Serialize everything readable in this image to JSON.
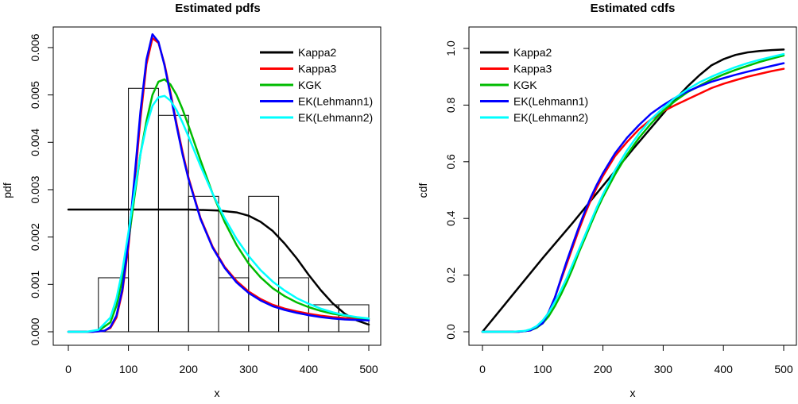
{
  "colors": {
    "Kappa2": "#000000",
    "Kappa3": "#ff0000",
    "KGK": "#00bb00",
    "EK(Lehmann1)": "#0000ff",
    "EK(Lehmann2)": "#00ffff"
  },
  "chart_data": [
    {
      "type": "line",
      "title": "Estimated pdfs",
      "xlabel": "x",
      "ylabel": "pdf",
      "xlim": [
        0,
        500
      ],
      "ylim": [
        0,
        0.0062
      ],
      "xticks": [
        0,
        100,
        200,
        300,
        400,
        500
      ],
      "yticks": [
        0.0,
        0.001,
        0.002,
        0.003,
        0.004,
        0.005,
        0.006
      ],
      "ytick_labels": [
        "0.000",
        "0.001",
        "0.002",
        "0.003",
        "0.004",
        "0.005",
        "0.006"
      ],
      "legend_position": "top-right",
      "histogram": {
        "bin_edges": [
          0,
          50,
          100,
          150,
          200,
          250,
          300,
          350,
          400,
          450,
          500
        ],
        "densities": [
          0,
          0.00114,
          0.00514,
          0.00457,
          0.00286,
          0.00114,
          0.00286,
          0.00114,
          0.00057,
          0.00057
        ]
      },
      "series": [
        {
          "name": "Kappa2",
          "x": [
            0,
            50,
            100,
            150,
            200,
            250,
            280,
            300,
            320,
            340,
            360,
            380,
            400,
            420,
            440,
            460,
            480,
            500
          ],
          "y": [
            0.00258,
            0.00258,
            0.00258,
            0.00258,
            0.00258,
            0.00256,
            0.00252,
            0.00245,
            0.00232,
            0.00213,
            0.00186,
            0.00155,
            0.0012,
            0.00088,
            0.0006,
            0.00038,
            0.00024,
            0.00015
          ]
        },
        {
          "name": "Kappa3",
          "x": [
            0,
            40,
            60,
            70,
            80,
            90,
            100,
            110,
            120,
            130,
            140,
            150,
            160,
            170,
            180,
            190,
            200,
            220,
            240,
            260,
            280,
            300,
            320,
            340,
            360,
            380,
            400,
            420,
            440,
            460,
            480,
            500
          ],
          "y": [
            0,
            0,
            2e-05,
            8e-05,
            0.0003,
            0.00085,
            0.0018,
            0.0031,
            0.0045,
            0.00565,
            0.0062,
            0.0061,
            0.00565,
            0.00505,
            0.0044,
            0.0038,
            0.00325,
            0.0024,
            0.0018,
            0.00137,
            0.00107,
            0.00085,
            0.00069,
            0.00057,
            0.00049,
            0.00043,
            0.00038,
            0.00034,
            0.00031,
            0.00029,
            0.00028,
            0.00027
          ]
        },
        {
          "name": "KGK",
          "x": [
            0,
            30,
            50,
            70,
            80,
            90,
            100,
            110,
            120,
            130,
            140,
            150,
            160,
            170,
            180,
            190,
            200,
            220,
            240,
            260,
            280,
            300,
            320,
            340,
            360,
            380,
            400,
            420,
            440,
            460,
            480,
            500
          ],
          "y": [
            0,
            0,
            2e-05,
            0.0002,
            0.00055,
            0.0011,
            0.0019,
            0.00285,
            0.00375,
            0.00445,
            0.005,
            0.00528,
            0.00533,
            0.00522,
            0.005,
            0.0047,
            0.00435,
            0.00362,
            0.00292,
            0.00232,
            0.00183,
            0.00144,
            0.00115,
            0.00092,
            0.00075,
            0.00062,
            0.00052,
            0.00044,
            0.00038,
            0.00034,
            0.0003,
            0.00027
          ]
        },
        {
          "name": "EK(Lehmann1)",
          "x": [
            0,
            40,
            60,
            70,
            80,
            90,
            100,
            110,
            120,
            130,
            140,
            150,
            160,
            170,
            180,
            190,
            200,
            220,
            240,
            260,
            280,
            300,
            320,
            340,
            360,
            380,
            400,
            420,
            440,
            460,
            480,
            500
          ],
          "y": [
            0,
            0,
            2e-05,
            0.0001,
            0.00034,
            0.0009,
            0.0019,
            0.00325,
            0.00465,
            0.00575,
            0.00628,
            0.00612,
            0.00562,
            0.005,
            0.00435,
            0.00375,
            0.00322,
            0.00238,
            0.00178,
            0.00135,
            0.00104,
            0.00082,
            0.00066,
            0.00054,
            0.00046,
            0.0004,
            0.00035,
            0.00031,
            0.00028,
            0.00026,
            0.00025,
            0.00024
          ]
        },
        {
          "name": "EK(Lehmann2)",
          "x": [
            0,
            30,
            50,
            70,
            80,
            90,
            100,
            110,
            120,
            130,
            140,
            150,
            160,
            170,
            180,
            190,
            200,
            220,
            240,
            260,
            280,
            300,
            320,
            340,
            360,
            380,
            400,
            420,
            440,
            460,
            480,
            500
          ],
          "y": [
            0,
            0,
            4e-05,
            0.0003,
            0.0007,
            0.0013,
            0.0021,
            0.00295,
            0.00375,
            0.00435,
            0.00477,
            0.00495,
            0.00498,
            0.00488,
            0.00468,
            0.00442,
            0.00412,
            0.0035,
            0.00292,
            0.0024,
            0.00196,
            0.0016,
            0.0013,
            0.00106,
            0.00087,
            0.00071,
            0.00059,
            0.00049,
            0.00041,
            0.00035,
            0.00031,
            0.00028
          ]
        }
      ]
    },
    {
      "type": "line",
      "title": "Estimated cdfs",
      "xlabel": "x",
      "ylabel": "cdf",
      "xlim": [
        0,
        500
      ],
      "ylim": [
        0,
        1.0
      ],
      "xticks": [
        0,
        100,
        200,
        300,
        400,
        500
      ],
      "yticks": [
        0.0,
        0.2,
        0.4,
        0.6,
        0.8,
        1.0
      ],
      "ytick_labels": [
        "0.0",
        "0.2",
        "0.4",
        "0.6",
        "0.8",
        "1.0"
      ],
      "legend_position": "top-left",
      "series": [
        {
          "name": "Kappa2",
          "x": [
            0,
            50,
            100,
            150,
            200,
            250,
            300,
            320,
            340,
            360,
            380,
            400,
            420,
            440,
            460,
            480,
            500
          ],
          "y": [
            0,
            0.13,
            0.26,
            0.385,
            0.515,
            0.645,
            0.77,
            0.82,
            0.865,
            0.905,
            0.94,
            0.962,
            0.977,
            0.986,
            0.991,
            0.994,
            0.996
          ]
        },
        {
          "name": "Kappa3",
          "x": [
            0,
            60,
            80,
            100,
            110,
            120,
            130,
            140,
            150,
            160,
            170,
            180,
            190,
            200,
            220,
            240,
            260,
            280,
            300,
            320,
            340,
            360,
            380,
            400,
            420,
            440,
            460,
            480,
            500
          ],
          "y": [
            0,
            0.0,
            0.005,
            0.03,
            0.07,
            0.12,
            0.18,
            0.24,
            0.3,
            0.36,
            0.415,
            0.465,
            0.51,
            0.55,
            0.62,
            0.67,
            0.715,
            0.75,
            0.778,
            0.8,
            0.82,
            0.84,
            0.86,
            0.875,
            0.888,
            0.9,
            0.91,
            0.92,
            0.928
          ]
        },
        {
          "name": "KGK",
          "x": [
            0,
            50,
            70,
            80,
            90,
            100,
            110,
            120,
            130,
            140,
            150,
            160,
            170,
            180,
            190,
            200,
            220,
            240,
            260,
            280,
            300,
            320,
            340,
            360,
            380,
            400,
            420,
            440,
            460,
            480,
            500
          ],
          "y": [
            0,
            0.0,
            0.002,
            0.006,
            0.014,
            0.03,
            0.055,
            0.09,
            0.13,
            0.175,
            0.225,
            0.28,
            0.33,
            0.38,
            0.43,
            0.475,
            0.555,
            0.625,
            0.685,
            0.735,
            0.78,
            0.815,
            0.845,
            0.868,
            0.89,
            0.908,
            0.924,
            0.938,
            0.952,
            0.964,
            0.975
          ]
        },
        {
          "name": "EK(Lehmann1)",
          "x": [
            0,
            60,
            80,
            100,
            110,
            120,
            130,
            140,
            150,
            160,
            170,
            180,
            190,
            200,
            220,
            240,
            260,
            280,
            300,
            320,
            340,
            360,
            380,
            400,
            420,
            440,
            460,
            480,
            500
          ],
          "y": [
            0,
            0.0,
            0.005,
            0.03,
            0.07,
            0.12,
            0.185,
            0.25,
            0.31,
            0.37,
            0.425,
            0.475,
            0.52,
            0.56,
            0.63,
            0.685,
            0.73,
            0.77,
            0.8,
            0.826,
            0.848,
            0.866,
            0.882,
            0.895,
            0.907,
            0.918,
            0.928,
            0.938,
            0.948
          ]
        },
        {
          "name": "EK(Lehmann2)",
          "x": [
            0,
            50,
            70,
            80,
            90,
            100,
            110,
            120,
            130,
            140,
            150,
            160,
            170,
            180,
            190,
            200,
            220,
            240,
            260,
            280,
            300,
            320,
            340,
            360,
            380,
            400,
            420,
            440,
            460,
            480,
            500
          ],
          "y": [
            0,
            0.0,
            0.003,
            0.009,
            0.02,
            0.04,
            0.068,
            0.105,
            0.145,
            0.19,
            0.24,
            0.29,
            0.34,
            0.39,
            0.44,
            0.485,
            0.57,
            0.64,
            0.7,
            0.75,
            0.79,
            0.826,
            0.855,
            0.88,
            0.9,
            0.918,
            0.934,
            0.948,
            0.96,
            0.97,
            0.98
          ]
        }
      ]
    }
  ]
}
